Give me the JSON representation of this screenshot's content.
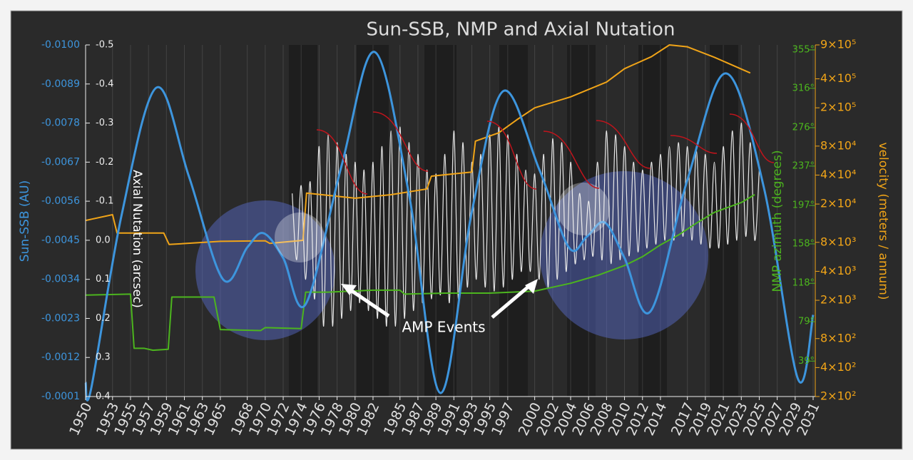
{
  "chart_data": {
    "type": "line",
    "title": "Sun-SSB, NMP and Axial Nutation",
    "annotation": "AMP Events",
    "xlim": [
      1950,
      2031
    ],
    "xticks": [
      1950,
      1953,
      1955,
      1957,
      1959,
      1961,
      1963,
      1965,
      1968,
      1970,
      1972,
      1974,
      1976,
      1978,
      1980,
      1982,
      1985,
      1987,
      1989,
      1991,
      1993,
      1995,
      1997,
      2000,
      2002,
      2004,
      2006,
      2008,
      2010,
      2012,
      2014,
      2017,
      2019,
      2021,
      2023,
      2025,
      2027,
      2029,
      2031
    ],
    "ylabel": "Sun-SSB (AU)",
    "ylim": [
      -0.0001,
      -0.01
    ],
    "yticks": [
      {
        "value": -0.01,
        "label": "-0.0100"
      },
      -0.0089,
      -0.0078,
      -0.0067,
      -0.0056,
      -0.0045,
      -0.0034,
      -0.0023,
      -0.0012,
      -0.0001
    ],
    "y2label": "Axial Nutation (arcsec)",
    "y2lim": [
      0.4,
      -0.5
    ],
    "y2ticks": [
      -0.5,
      -0.4,
      -0.3,
      -0.2,
      -0.1,
      {
        "value": 0,
        "label": "0.0"
      },
      0.1,
      0.2,
      0.3,
      0.4
    ],
    "y3label": "NMP azimuth (degrees)",
    "y3lim": [
      3,
      360
    ],
    "y3ticks": [
      {
        "value": 355,
        "label": "355°"
      },
      {
        "value": 316,
        "label": "316°"
      },
      {
        "value": 276,
        "label": "276°"
      },
      {
        "value": 237,
        "label": "237°"
      },
      {
        "value": 197,
        "label": "197°"
      },
      {
        "value": 158,
        "label": "158°"
      },
      {
        "value": 118,
        "label": "118°"
      },
      {
        "value": 79,
        "label": "79°"
      },
      {
        "value": 39,
        "label": "39°"
      }
    ],
    "y4label": "velocity (meters / annum)",
    "y4lim": [
      200,
      900000
    ],
    "y4scale": "log",
    "y4ticks": [
      {
        "value": 900000,
        "label": "9×10⁵"
      },
      {
        "value": 400000,
        "label": "4×10⁵"
      },
      {
        "value": 200000,
        "label": "2×10⁵"
      },
      {
        "value": 80000,
        "label": "8×10⁴"
      },
      {
        "value": 40000,
        "label": "4×10⁴"
      },
      {
        "value": 20000,
        "label": "2×10⁴"
      },
      {
        "value": 8000,
        "label": "8×10³"
      },
      {
        "value": 4000,
        "label": "4×10³"
      },
      {
        "value": 2000,
        "label": "2×10³"
      },
      {
        "value": 800,
        "label": "8×10²"
      },
      {
        "value": 400,
        "label": "4×10²"
      },
      {
        "value": 200,
        "label": "2×10²"
      }
    ],
    "series": [
      {
        "axis": "y2",
        "color": "#e8e8e8",
        "smooth": true,
        "width": 1.2,
        "x": [
          1973,
          1973.5,
          1974,
          1974.5,
          1975,
          1975.5,
          1976,
          1976.5,
          1977,
          1977.5,
          1978,
          1978.5,
          1979,
          1979.5,
          1980,
          1980.5,
          1981,
          1981.5,
          1982,
          1982.5,
          1983,
          1983.5,
          1984,
          1984.5,
          1985,
          1985.5,
          1986,
          1986.5,
          1987,
          1987.5,
          1988,
          1988.5,
          1989,
          1989.5,
          1990,
          1990.5,
          1991,
          1991.5,
          1992,
          1992.5,
          1993,
          1993.5,
          1994,
          1994.5,
          1995,
          1995.5,
          1996,
          1996.5,
          1997,
          1997.5,
          1998,
          1998.5,
          1999,
          1999.5,
          2000,
          2000.5,
          2001,
          2001.5,
          2002,
          2002.5,
          2003,
          2003.5,
          2004,
          2004.5,
          2005,
          2005.5,
          2006,
          2006.5,
          2007,
          2007.5,
          2008,
          2008.5,
          2009,
          2009.5,
          2010,
          2010.5,
          2011,
          2011.5,
          2012,
          2012.5,
          2013,
          2013.5,
          2014,
          2014.5,
          2015,
          2015.5,
          2016,
          2016.5,
          2017,
          2017.5,
          2018,
          2018.5,
          2019,
          2019.5,
          2020,
          2020.5,
          2021,
          2021.5,
          2022,
          2022.5,
          2023,
          2023.5,
          2024,
          2024.5,
          2025
        ],
        "values": [
          -0.12,
          0.05,
          -0.14,
          0.1,
          -0.15,
          0.15,
          -0.24,
          0.22,
          -0.27,
          0.22,
          -0.25,
          0.2,
          -0.22,
          0.18,
          -0.2,
          0.16,
          -0.18,
          0.18,
          -0.2,
          0.2,
          -0.24,
          0.22,
          -0.28,
          0.22,
          -0.29,
          0.2,
          -0.25,
          0.18,
          -0.22,
          0.16,
          -0.18,
          0.15,
          -0.17,
          0.14,
          -0.22,
          0.16,
          -0.28,
          0.15,
          -0.25,
          0.12,
          -0.2,
          0.1,
          -0.22,
          0.12,
          -0.27,
          0.13,
          -0.29,
          0.12,
          -0.27,
          0.1,
          -0.22,
          0.08,
          -0.18,
          0.08,
          -0.17,
          0.1,
          -0.22,
          0.12,
          -0.26,
          0.1,
          -0.25,
          0.08,
          -0.2,
          0.06,
          -0.12,
          0.05,
          -0.1,
          0.04,
          -0.2,
          0.05,
          -0.28,
          0.06,
          -0.27,
          0.05,
          -0.24,
          0.04,
          -0.2,
          0.03,
          -0.18,
          0.02,
          -0.2,
          0.01,
          -0.22,
          0,
          -0.24,
          0,
          -0.25,
          -0.01,
          -0.24,
          0,
          -0.23,
          0.01,
          -0.22,
          0.02,
          -0.2,
          0.02,
          -0.24,
          0.01,
          -0.28,
          0,
          -0.3,
          -0.01,
          -0.25,
          0,
          -0.18
        ]
      },
      {
        "axis": "y3",
        "color": "#4cb51e",
        "smooth": false,
        "width": 2,
        "x": [
          1950,
          1955,
          1955.4,
          1956.5,
          1957.5,
          1959.2,
          1959.6,
          1964.3,
          1965,
          1969.5,
          1970,
          1974,
          1974.5,
          1977,
          1982,
          1985,
          1985.5,
          1990,
          1995,
          2000,
          2004,
          2007,
          2010,
          2012,
          2014,
          2016,
          2018,
          2020,
          2023,
          2024.5
        ],
        "values": [
          106,
          107,
          52,
          52,
          50,
          51,
          104,
          104,
          71,
          70,
          73,
          72,
          109,
          109,
          111,
          111,
          107,
          108,
          108,
          110,
          118,
          126,
          136,
          145,
          157,
          167,
          179,
          190,
          200,
          208
        ]
      },
      {
        "axis": "y4",
        "color": "#f0a418",
        "smooth": false,
        "width": 2,
        "x": [
          1950,
          1953,
          1953.5,
          1958.7,
          1959.3,
          1965,
          1970,
          1970.5,
          1973,
          1974.2,
          1974.6,
          1980,
          1984,
          1988,
          1988.5,
          1993,
          1993.4,
          1996,
          1998,
          2000,
          2004,
          2008,
          2010,
          2013,
          2015,
          2017,
          2020,
          2024
        ],
        "values": [
          13500,
          15500,
          10000,
          10000,
          7600,
          8200,
          8300,
          7800,
          8200,
          8400,
          26000,
          23000,
          25000,
          28700,
          39000,
          43000,
          90000,
          110000,
          150000,
          200000,
          260000,
          370000,
          510000,
          680000,
          900000,
          860000,
          670000,
          460000
        ]
      },
      {
        "axis": "y",
        "color": "#3d95dd",
        "smooth": true,
        "width": 3,
        "x": [
          1950,
          1950.6,
          1954,
          1957.9,
          1961.5,
          1965.3,
          1968,
          1969.8,
          1972,
          1974.5,
          1978.5,
          1982.2,
          1986,
          1989.5,
          1993,
          1996.5,
          2000.5,
          2003.8,
          2005.8,
          2007.8,
          2010,
          2012.9,
          2017,
          2021.3,
          2025.5,
          2029.3,
          2031
        ],
        "values": [
          -0.0005,
          -0.0003,
          -0.0052,
          -0.0088,
          -0.0063,
          -0.0034,
          -0.0043,
          -0.0047,
          -0.004,
          -0.0027,
          -0.0066,
          -0.0098,
          -0.0058,
          -0.0002,
          -0.0053,
          -0.0087,
          -0.0065,
          -0.0043,
          -0.0046,
          -0.005,
          -0.004,
          -0.0025,
          -0.0062,
          -0.0092,
          -0.006,
          -0.0006,
          -0.0024
        ]
      }
    ]
  }
}
